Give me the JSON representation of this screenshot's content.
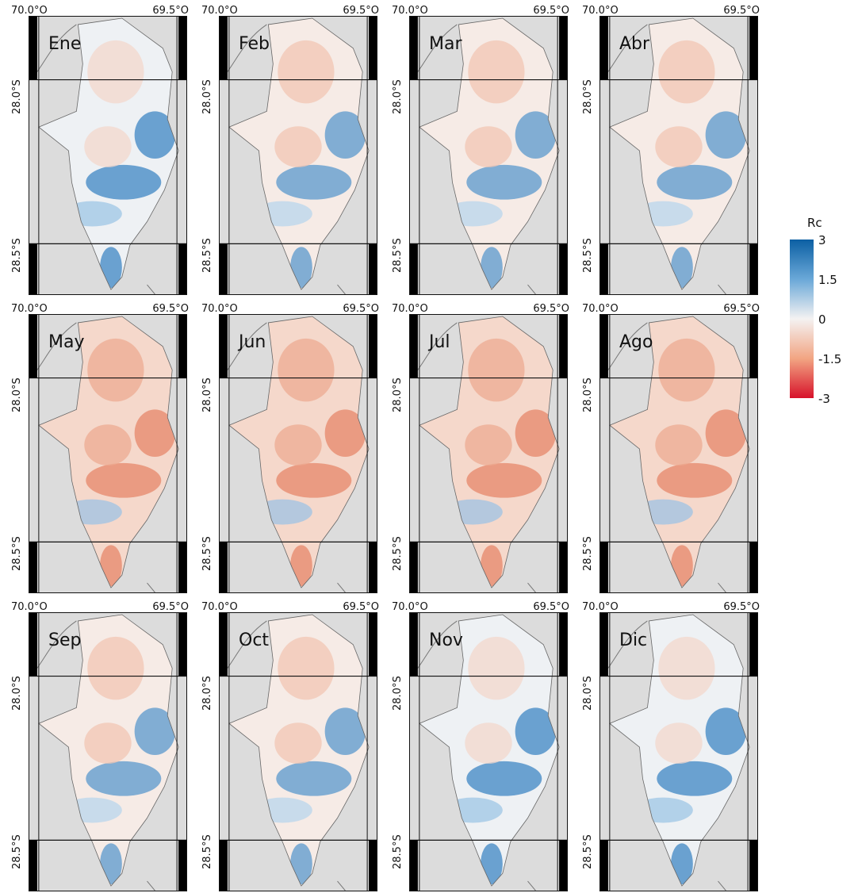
{
  "figure": {
    "coords": {
      "lon_left": "70.0°O",
      "lon_right": "69.5°O",
      "lat_top": "28.0°S",
      "lat_bottom": "28.5°S"
    },
    "panels": [
      {
        "month": "Ene",
        "tone": "blue"
      },
      {
        "month": "Feb",
        "tone": "mixed"
      },
      {
        "month": "Mar",
        "tone": "mixed"
      },
      {
        "month": "Abr",
        "tone": "mixed"
      },
      {
        "month": "May",
        "tone": "red"
      },
      {
        "month": "Jun",
        "tone": "red"
      },
      {
        "month": "Jul",
        "tone": "red"
      },
      {
        "month": "Ago",
        "tone": "red"
      },
      {
        "month": "Sep",
        "tone": "mixed"
      },
      {
        "month": "Oct",
        "tone": "mixed"
      },
      {
        "month": "Nov",
        "tone": "blue"
      },
      {
        "month": "Dic",
        "tone": "blue"
      }
    ],
    "legend": {
      "title": "Rc",
      "ticks": [
        "3",
        "1.5",
        "0",
        "-1.5",
        "-3"
      ],
      "range": [
        -3,
        3
      ],
      "colors": {
        "high": "#0b5fa3",
        "mid": "#f4f2f2",
        "low": "#d7122a"
      }
    }
  }
}
